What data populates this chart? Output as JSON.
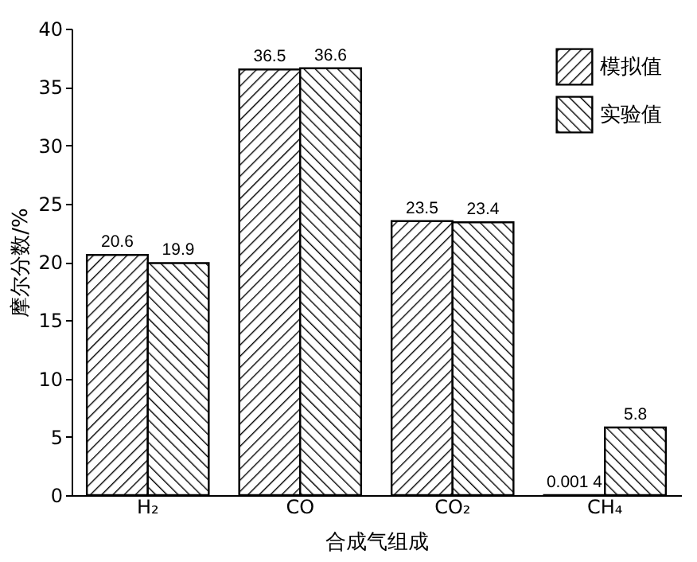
{
  "chart_data": {
    "type": "bar",
    "xlabel": "合成气组成",
    "ylabel": "摩尔分数/%",
    "categories": [
      "H₂",
      "CO",
      "CO₂",
      "CH₄"
    ],
    "series": [
      {
        "name": "模拟值",
        "color": "#000000",
        "values": [
          20.6,
          36.5,
          23.5,
          0.0014
        ],
        "value_labels": [
          "20.6",
          "36.5",
          "23.5",
          "0.001 4"
        ]
      },
      {
        "name": "实验值",
        "color": "#000000",
        "values": [
          19.9,
          36.6,
          23.4,
          5.8
        ],
        "value_labels": [
          "19.9",
          "36.6",
          "23.4",
          "5.8"
        ]
      }
    ],
    "ylim": [
      0,
      40
    ],
    "yticks": [
      0,
      5,
      10,
      15,
      20,
      25,
      30,
      35,
      40
    ],
    "grid": false,
    "legend": "top right"
  }
}
